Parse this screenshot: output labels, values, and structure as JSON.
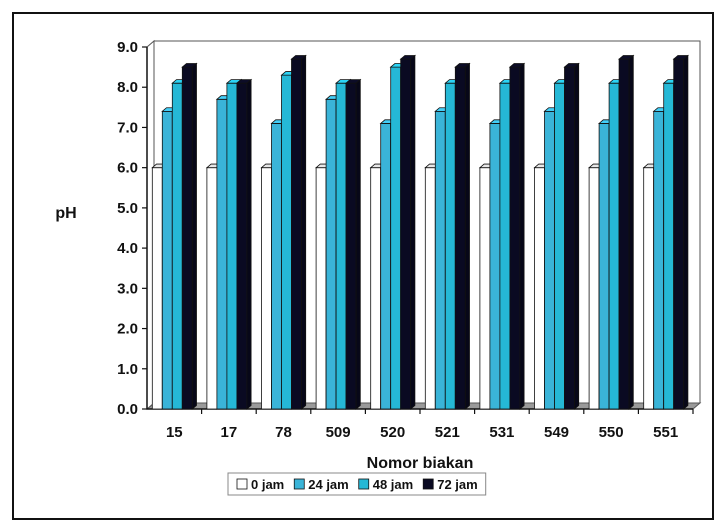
{
  "chart_data": {
    "type": "bar",
    "title": "",
    "xlabel": "Nomor  biakan",
    "ylabel": "pH",
    "ylim": [
      0,
      9
    ],
    "yticks": [
      "0.0",
      "1.0",
      "2.0",
      "3.0",
      "4.0",
      "5.0",
      "6.0",
      "7.0",
      "8.0",
      "9.0"
    ],
    "grid": false,
    "legend_position": "bottom",
    "categories": [
      "15",
      "17",
      "78",
      "509",
      "520",
      "521",
      "531",
      "549",
      "550",
      "551"
    ],
    "series": [
      {
        "name": "0 jam",
        "color": "#ffffff",
        "values": [
          6.0,
          6.0,
          6.0,
          6.0,
          6.0,
          6.0,
          6.0,
          6.0,
          6.0,
          6.0
        ]
      },
      {
        "name": "24 jam",
        "color": "#3ab4d8",
        "values": [
          7.4,
          7.7,
          7.1,
          7.7,
          7.1,
          7.4,
          7.1,
          7.4,
          7.1,
          7.4
        ]
      },
      {
        "name": "48 jam",
        "color": "#25b8d6",
        "values": [
          8.1,
          8.1,
          8.3,
          8.1,
          8.5,
          8.1,
          8.1,
          8.1,
          8.1,
          8.1
        ]
      },
      {
        "name": "72 jam",
        "color": "#0a0a22",
        "values": [
          8.5,
          8.1,
          8.7,
          8.1,
          8.7,
          8.5,
          8.5,
          8.5,
          8.7,
          8.7
        ]
      }
    ]
  }
}
